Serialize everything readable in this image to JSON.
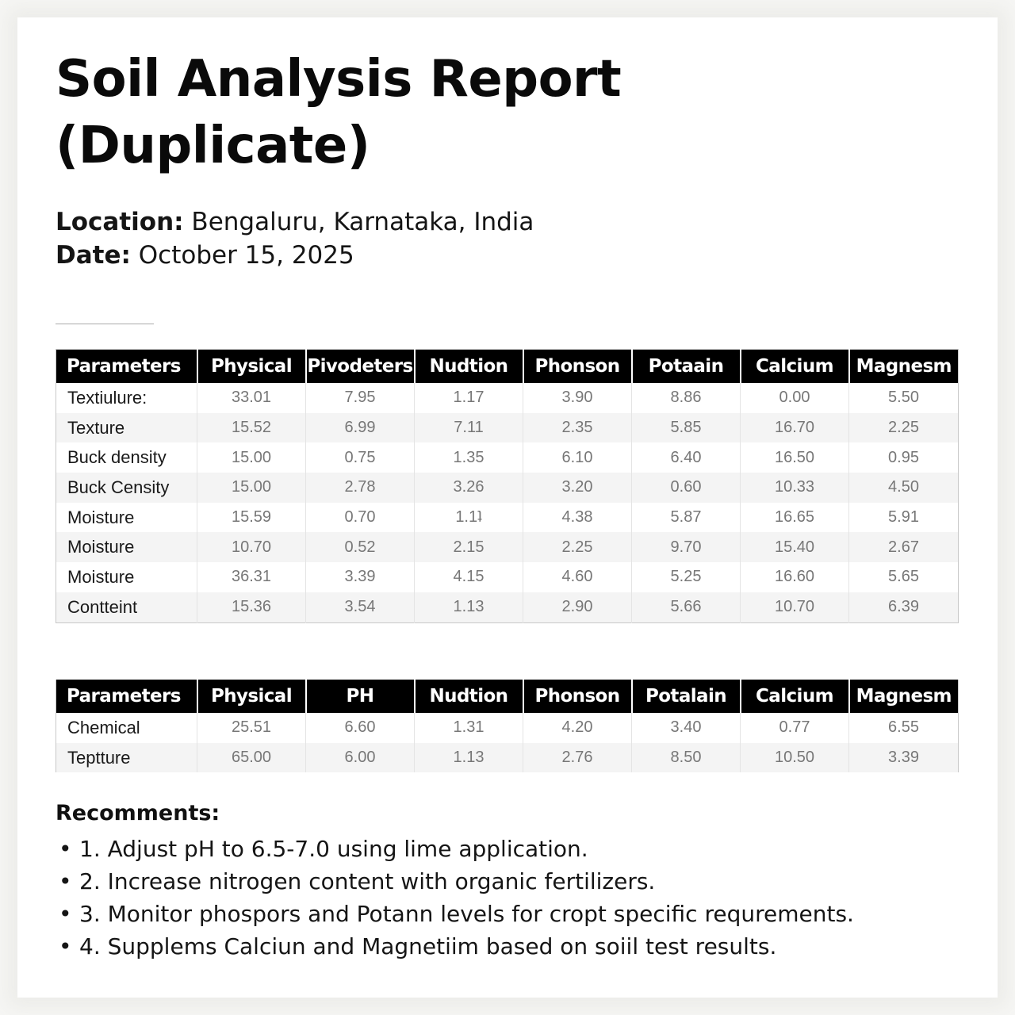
{
  "title": "Soil Analysis Report (Duplicate)",
  "location_label": "Location:",
  "location_value": "Bengaluru, Karnataka, India",
  "date_label": "Date:",
  "date_value": "October 15, 2025",
  "table1": {
    "headers": [
      "Parameters",
      "Physical",
      "Pivodeters",
      "Nudtion",
      "Phonson",
      "Potaain",
      "Calcium",
      "Magnesm"
    ],
    "rows": [
      [
        "Textiulure:",
        "33.01",
        "7.95",
        "1.17",
        "3.90",
        "8.86",
        "0.00",
        "5.50"
      ],
      [
        "Texture",
        "15.52",
        "6.99",
        "7.11",
        "2.35",
        "5.85",
        "16.70",
        "2.25"
      ],
      [
        "Buck density",
        "15.00",
        "0.75",
        "1.35",
        "6.10",
        "6.40",
        "16.50",
        "0.95"
      ],
      [
        "Buck Censity",
        "15.00",
        "2.78",
        "3.26",
        "3.20",
        "0.60",
        "10.33",
        "4.50"
      ],
      [
        "Moisture",
        "15.59",
        "0.70",
        "1.1ʇ",
        "4.38",
        "5.87",
        "16.65",
        "5.91"
      ],
      [
        "Moisture",
        "10.70",
        "0.52",
        "2.15",
        "2.25",
        "9.70",
        "15.40",
        "2.67"
      ],
      [
        "Moisture",
        "36.31",
        "3.39",
        "4.15",
        "4.60",
        "5.25",
        "16.60",
        "5.65"
      ],
      [
        "Contteint",
        "15.36",
        "3.54",
        "1.13",
        "2.90",
        "5.66",
        "10.70",
        "6.39"
      ]
    ]
  },
  "table2": {
    "headers": [
      "Parameters",
      "Physical",
      "PH",
      "Nudtion",
      "Phonson",
      "Potalain",
      "Calcium",
      "Magnesm"
    ],
    "rows": [
      [
        "Chemical",
        "25.51",
        "6.60",
        "1.31",
        "4.20",
        "3.40",
        "0.77",
        "6.55"
      ],
      [
        "Teptture",
        "65.00",
        "6.00",
        "1.13",
        "2.76",
        "8.50",
        "10.50",
        "3.39"
      ]
    ]
  },
  "recommendations": {
    "heading": "Recomments:",
    "bullet": "•",
    "items": [
      "1. Adjust pH to 6.5-7.0 using lime application.",
      "2. Increase nitrogen content with organic fertilizers.",
      "3. Monitor phospors and Potann levels for cropt specific requrements.",
      "4. Supplems Calciun and Magnetiim based on soiil test results."
    ]
  }
}
